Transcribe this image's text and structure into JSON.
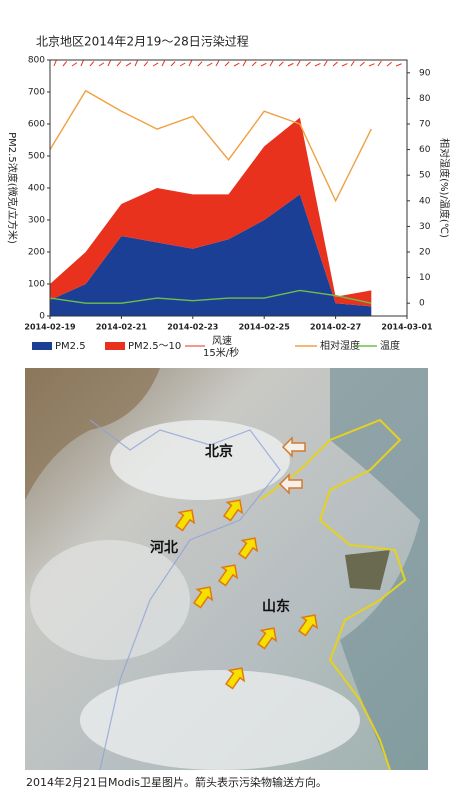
{
  "chart_data": {
    "type": "area-line",
    "title": "北京地区2014年2月19～28日污染过程",
    "ylabel": "PM2.5浓度(微克/立方米)",
    "y2label": "相对湿度(%)/温度(℃)",
    "x": [
      "2014-02-19",
      "2014-02-20",
      "2014-02-21",
      "2014-02-22",
      "2014-02-23",
      "2014-02-24",
      "2014-02-25",
      "2014-02-26",
      "2014-02-27",
      "2014-02-28"
    ],
    "xlim": [
      "2014-02-19",
      "2014-03-01"
    ],
    "xticks": [
      "2014-02-19",
      "2014-02-21",
      "2014-02-23",
      "2014-02-25",
      "2014-02-27",
      "2014-03-01"
    ],
    "ylim": [
      0,
      800
    ],
    "yticks": [
      0,
      100,
      200,
      300,
      400,
      500,
      600,
      700,
      800
    ],
    "y2lim": [
      -5,
      95
    ],
    "y2ticks": [
      0,
      10,
      20,
      30,
      40,
      50,
      60,
      70,
      80,
      90
    ],
    "series": [
      {
        "name": "PM2.5",
        "color": "#1a3f95",
        "stack": true,
        "values": [
          50,
          100,
          250,
          230,
          210,
          240,
          300,
          380,
          40,
          30
        ]
      },
      {
        "name": "PM2.5～10",
        "color": "#e8321e",
        "stack": true,
        "values": [
          50,
          100,
          100,
          170,
          170,
          140,
          230,
          240,
          20,
          50
        ]
      },
      {
        "name": "相对湿度",
        "color": "#f0a040",
        "axis": "y2",
        "values": [
          60,
          83,
          75,
          68,
          73,
          56,
          75,
          70,
          40,
          68
        ]
      },
      {
        "name": "温度",
        "color": "#6cc04a",
        "axis": "y2",
        "values": [
          2,
          0,
          0,
          2,
          1,
          2,
          2,
          5,
          3,
          0
        ]
      }
    ],
    "wind_label": "风速",
    "wind_scale": "15米/秒",
    "wind_color": "#e8321e"
  },
  "map": {
    "labels": [
      "北京",
      "河北",
      "山东"
    ]
  },
  "caption": "2014年2月21日Modis卫星图片。箭头表示污染物输送方向。"
}
